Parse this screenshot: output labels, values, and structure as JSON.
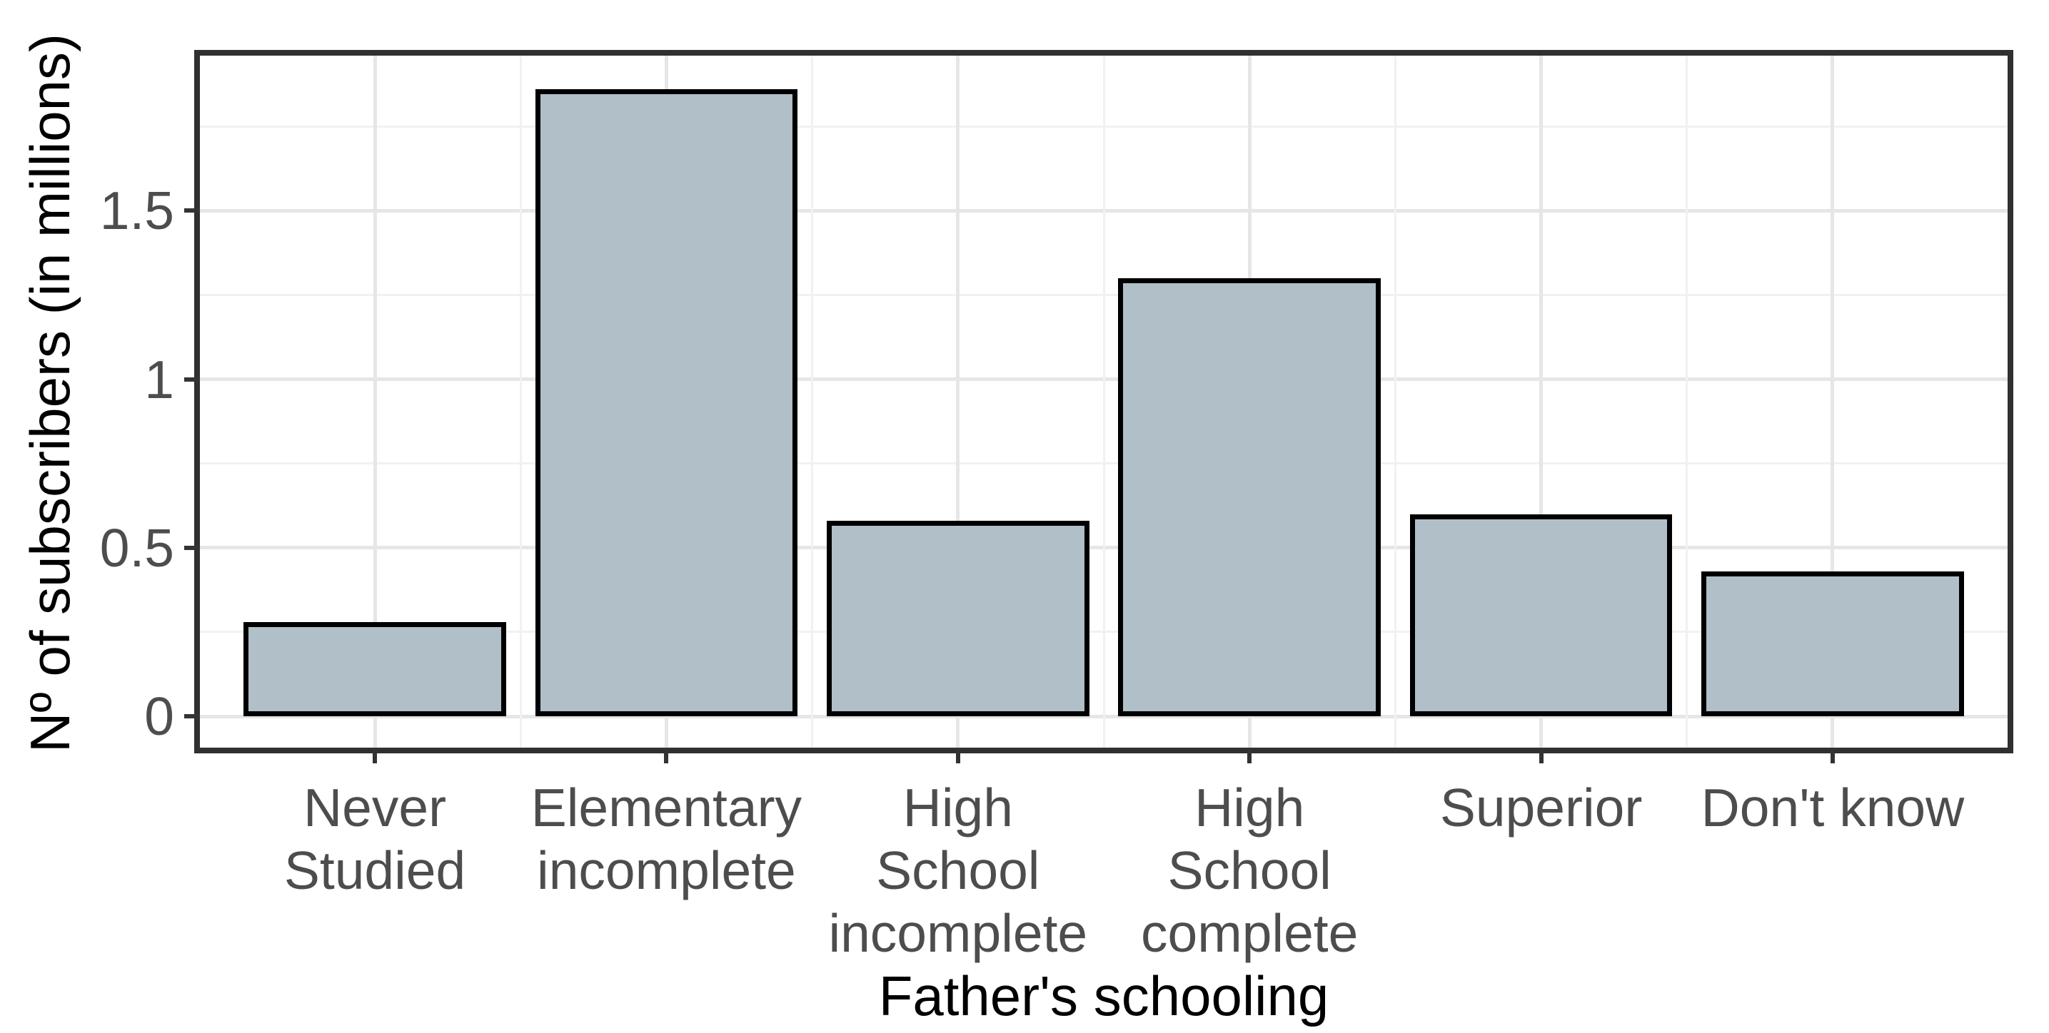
{
  "figure": {
    "background": "#ffffff",
    "panel_border_color": "#303030",
    "grid_major_color": "#e6e6e6",
    "grid_minor_color": "#f1f1f1",
    "tick_mark_color": "#333333",
    "tick_text_color": "#4d4d4d",
    "axis_title_color": "#000000"
  },
  "axes": {
    "x_title": "Father's schooling",
    "y_title": "Nº of subscribers (in millions)",
    "y_tick_labels": [
      "0",
      "0.5",
      "1",
      "1.5"
    ]
  },
  "chart_data": {
    "type": "bar",
    "title": "",
    "xlabel": "Father's schooling",
    "ylabel": "Nº of subscribers (in millions)",
    "categories": [
      "Never\nStudied",
      "Elementary\nincomplete",
      "High\nSchool\nincomplete",
      "High\nSchool\ncomplete",
      "Superior",
      "Don't know"
    ],
    "category_slugs": [
      "never-studied",
      "elementary-incomplete",
      "high-school-incomplete",
      "high-school-complete",
      "superior",
      "dont-know"
    ],
    "values": [
      0.28,
      1.86,
      0.58,
      1.3,
      0.6,
      0.43
    ],
    "yticks": [
      0,
      0.5,
      1,
      1.5
    ],
    "yticks_minor": [
      0.25,
      0.75,
      1.25,
      1.75
    ],
    "ylim": [
      -0.093,
      1.96
    ],
    "bar_fill": "#b0bfc8",
    "bar_stroke": "#000000",
    "bar_width_frac": 0.9,
    "x_expand": 0.6,
    "grid": true,
    "legend": false,
    "legend_position": "none"
  }
}
